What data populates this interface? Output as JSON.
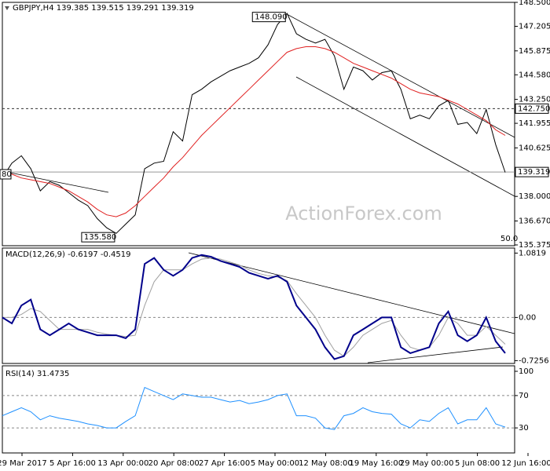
{
  "time_axis_labels": [
    "29 Mar 2017",
    "5 Apr 16:00",
    "13 Apr 00:00",
    "20 Apr 08:00",
    "27 Apr 16:00",
    "5 May 00:00",
    "12 May 08:00",
    "19 May 16:00",
    "29 May 00:00",
    "5 Jun 08:00",
    "12 Jun 16:00"
  ],
  "watermark": "ActionForex.com",
  "chart_data": [
    {
      "type": "line",
      "title": "GBPJPY,H4  139.385 139.515 139.291 139.319",
      "ylim": [
        135.375,
        148.5
      ],
      "yticks": [
        {
          "value": 148.5,
          "label": "148.500"
        },
        147.205,
        145.875,
        {
          "value": 144.58,
          "label": "144.580"
        },
        {
          "value": 143.25,
          "label": "143.250"
        },
        141.955,
        140.625,
        {
          "value": 138,
          "label": "138.000"
        },
        {
          "value": 136.67,
          "label": "136.670"
        },
        135.375
      ],
      "levels": [
        {
          "value": 142.75,
          "label": "142.750",
          "style": "dashed"
        },
        {
          "value": 139.319,
          "label": "139.319",
          "style": "solid"
        }
      ],
      "annotations": [
        {
          "value": 148.09,
          "label": "148.090"
        },
        {
          "value": 135.58,
          "label": "135.580"
        }
      ],
      "notes": [
        "80",
        "50.0"
      ],
      "series": [
        {
          "color": "#000000",
          "values": [
            139.0,
            139.8,
            140.2,
            139.5,
            138.3,
            138.8,
            138.6,
            138.2,
            137.8,
            137.5,
            136.8,
            136.3,
            136.0,
            136.5,
            137.0,
            139.5,
            139.8,
            139.9,
            141.5,
            141.0,
            143.5,
            143.8,
            144.2,
            144.5,
            144.8,
            145.0,
            145.2,
            145.5,
            146.2,
            147.3,
            147.9,
            146.8,
            146.5,
            146.3,
            146.5,
            145.6,
            143.8,
            145.0,
            144.8,
            144.3,
            144.7,
            144.8,
            143.8,
            142.2,
            142.4,
            142.2,
            142.9,
            143.2,
            141.9,
            142.0,
            141.4,
            142.7,
            140.8,
            139.3
          ]
        },
        {
          "color": "#e02020",
          "values": [
            139.3,
            139.2,
            139.0,
            138.9,
            138.8,
            138.7,
            138.5,
            138.3,
            138.0,
            137.7,
            137.3,
            137.0,
            136.9,
            137.1,
            137.5,
            138.0,
            138.5,
            139.0,
            139.6,
            140.1,
            140.7,
            141.3,
            141.8,
            142.3,
            142.8,
            143.3,
            143.8,
            144.3,
            144.8,
            145.3,
            145.8,
            146.0,
            146.1,
            146.1,
            146.0,
            145.8,
            145.5,
            145.2,
            145.0,
            144.8,
            144.6,
            144.4,
            144.1,
            143.8,
            143.6,
            143.5,
            143.4,
            143.2,
            143.0,
            142.7,
            142.4,
            142.1,
            141.6,
            141.3
          ]
        }
      ]
    },
    {
      "type": "line",
      "title": "MACD(12,26,9) -0.6197 -0.4519",
      "ylim": [
        -0.76,
        1.14
      ],
      "yticks": [
        1.0819,
        {
          "value": 0,
          "label": "0.00"
        },
        -0.7256
      ],
      "guides": [
        0
      ],
      "series": [
        {
          "color": "#a0a0a0",
          "values": [
            0.0,
            0.0,
            0.05,
            0.15,
            0.1,
            -0.05,
            -0.2,
            -0.2,
            -0.2,
            -0.2,
            -0.25,
            -0.28,
            -0.3,
            -0.32,
            -0.3,
            0.2,
            0.6,
            0.8,
            0.8,
            0.8,
            0.9,
            0.98,
            1.0,
            0.98,
            0.93,
            0.88,
            0.8,
            0.74,
            0.7,
            0.68,
            0.62,
            0.4,
            0.2,
            0.0,
            -0.3,
            -0.55,
            -0.65,
            -0.5,
            -0.3,
            -0.2,
            -0.1,
            -0.05,
            -0.3,
            -0.5,
            -0.55,
            -0.5,
            -0.3,
            0.0,
            -0.1,
            -0.3,
            -0.3,
            -0.15,
            -0.3,
            -0.45
          ]
        },
        {
          "color": "#00008b",
          "values": [
            0.0,
            -0.1,
            0.2,
            0.3,
            -0.2,
            -0.3,
            -0.2,
            -0.1,
            -0.2,
            -0.25,
            -0.3,
            -0.3,
            -0.3,
            -0.35,
            -0.2,
            0.9,
            1.0,
            0.8,
            0.7,
            0.8,
            1.0,
            1.05,
            1.02,
            0.95,
            0.9,
            0.85,
            0.75,
            0.7,
            0.65,
            0.7,
            0.6,
            0.2,
            0.0,
            -0.2,
            -0.5,
            -0.7,
            -0.65,
            -0.3,
            -0.2,
            -0.1,
            0.0,
            0.0,
            -0.5,
            -0.6,
            -0.55,
            -0.5,
            -0.1,
            0.1,
            -0.3,
            -0.4,
            -0.3,
            0.0,
            -0.4,
            -0.6
          ]
        }
      ]
    },
    {
      "type": "line",
      "title": "RSI(14) 31.4735",
      "ylim": [
        0,
        100
      ],
      "yticks": [
        100,
        70,
        30
      ],
      "guides": [
        70,
        30
      ],
      "series": [
        {
          "color": "#1e90ff",
          "values": [
            45,
            50,
            55,
            50,
            40,
            45,
            42,
            40,
            38,
            35,
            33,
            30,
            30,
            38,
            45,
            80,
            75,
            70,
            65,
            72,
            70,
            68,
            68,
            65,
            62,
            64,
            60,
            62,
            65,
            70,
            72,
            45,
            45,
            42,
            30,
            28,
            45,
            48,
            55,
            50,
            48,
            47,
            35,
            30,
            40,
            38,
            48,
            55,
            35,
            40,
            40,
            55,
            35,
            31
          ]
        }
      ]
    }
  ]
}
